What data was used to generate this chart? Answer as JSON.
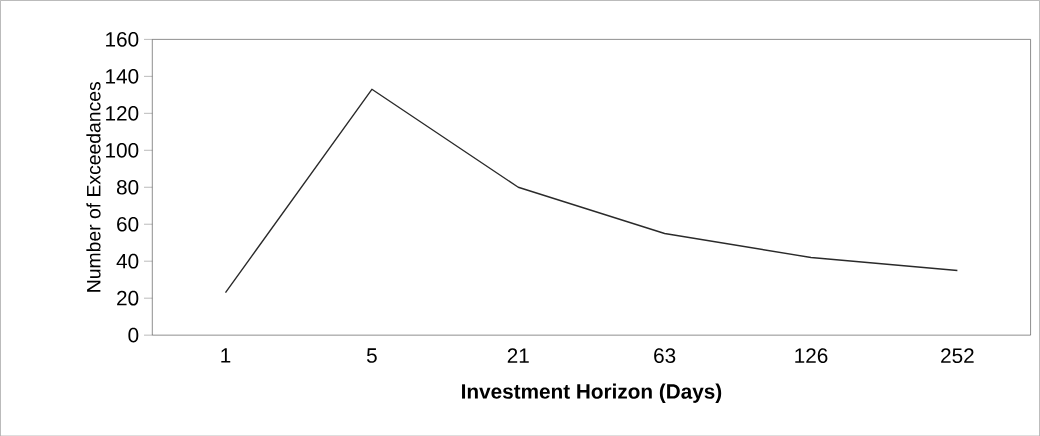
{
  "chart_data": {
    "type": "line",
    "xlabel": "Investment Horizon (Days)",
    "ylabel": "Number of Exceedances",
    "categories": [
      "1",
      "5",
      "21",
      "63",
      "126",
      "252"
    ],
    "series": [
      {
        "color": "#2a2a2a",
        "values": [
          23,
          133,
          80,
          55,
          42,
          35
        ]
      }
    ],
    "ylim": [
      0,
      160
    ],
    "yticks": [
      0,
      20,
      40,
      60,
      80,
      100,
      120,
      140,
      160
    ],
    "grid": false,
    "marker": "none",
    "line_style": "solid"
  }
}
